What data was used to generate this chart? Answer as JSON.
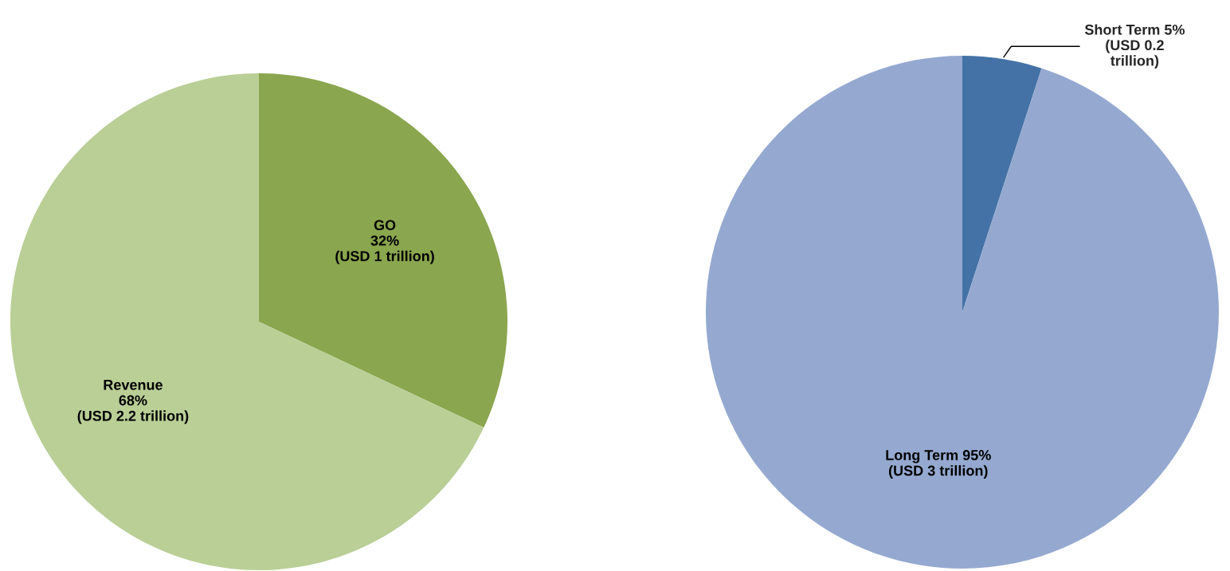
{
  "chart_data": [
    {
      "type": "pie",
      "categories": [
        "GO",
        "Revenue"
      ],
      "values": [
        32,
        68
      ],
      "colors": [
        "#8aa64e",
        "#b9cf96"
      ],
      "value_labels": [
        "\n32%\n(USD 1 trillion)",
        "\n68%\n(USD 2.2 trillion)"
      ]
    },
    {
      "type": "pie",
      "categories": [
        "Short Term",
        "Long Term"
      ],
      "values": [
        5,
        95
      ],
      "colors": [
        "#4472a6",
        "#95a9d0"
      ],
      "value_labels": [
        " 5%\n(USD 0.2\ntrillion)",
        " 95%\n(USD 3 trillion)"
      ]
    }
  ]
}
